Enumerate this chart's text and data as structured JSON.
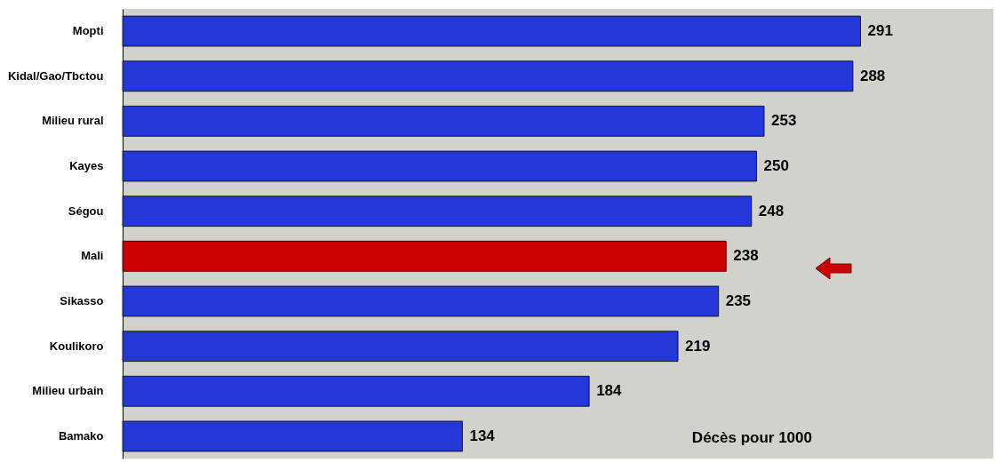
{
  "chart_data": {
    "type": "bar",
    "orientation": "horizontal",
    "categories": [
      "Mopti",
      "Kidal/Gao/Tbctou",
      "Milieu rural",
      "Kayes",
      "Ségou",
      "Mali",
      "Sikasso",
      "Koulikoro",
      "Milieu urbain",
      "Bamako"
    ],
    "values": [
      291,
      288,
      253,
      250,
      248,
      238,
      235,
      219,
      184,
      134
    ],
    "colors": [
      "#2438d8",
      "#2438d8",
      "#2438d8",
      "#2438d8",
      "#2438d8",
      "#cc0000",
      "#2438d8",
      "#2438d8",
      "#2438d8",
      "#2438d8"
    ],
    "data_labels": true,
    "annotations": [
      "Décès pour 1000"
    ]
  }
}
